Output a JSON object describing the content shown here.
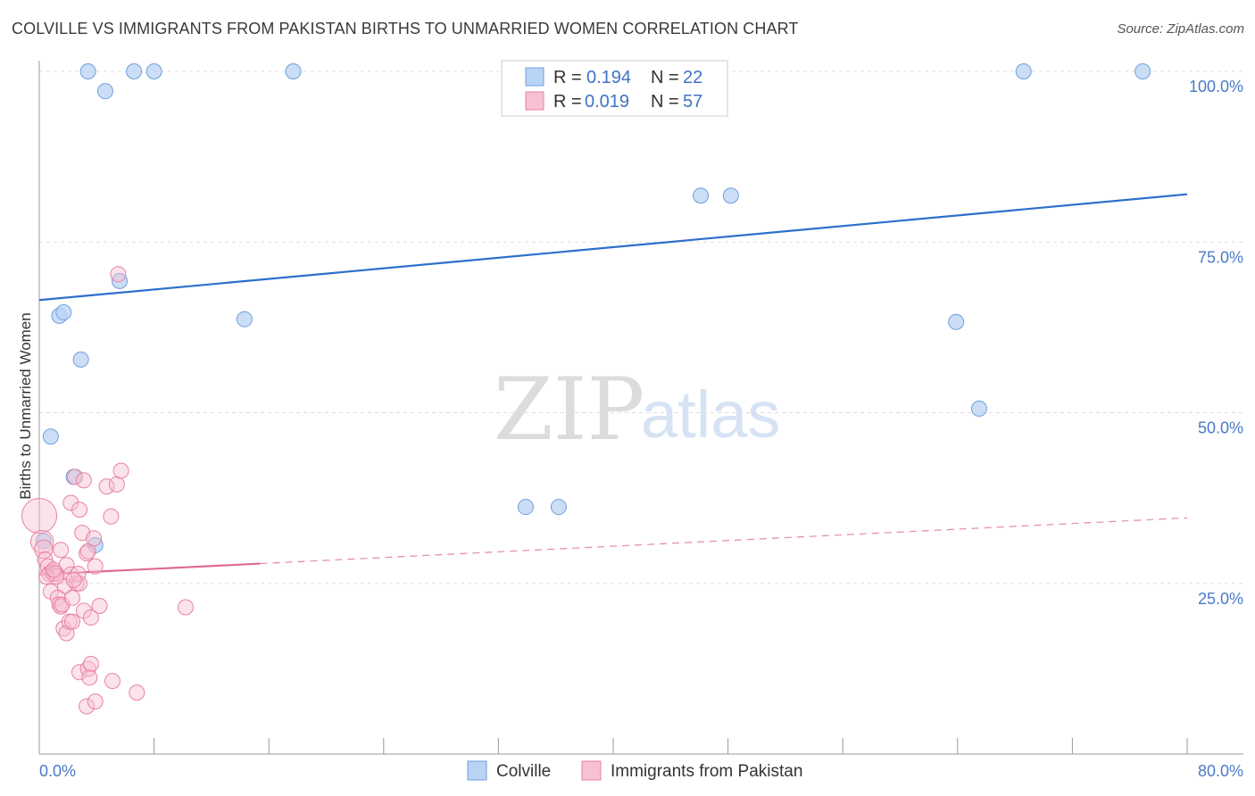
{
  "title": "COLVILLE VS IMMIGRANTS FROM PAKISTAN BIRTHS TO UNMARRIED WOMEN CORRELATION CHART",
  "source": "Source: ZipAtlas.com",
  "watermark": {
    "zip": "ZIP",
    "atlas": "atlas"
  },
  "colors": {
    "blue_fill": "#b9d3f3",
    "blue_stroke": "#6f9fde",
    "blue_line": "#2c6fcc",
    "pink_fill": "#f6c1d1",
    "pink_stroke": "#e882a3",
    "pink_line": "#e06a93",
    "grid": "#dddddd",
    "axis": "#999999",
    "tick_label": "#4a7ac7"
  },
  "legend": {
    "rows": [
      {
        "r_label": "R =",
        "r_value": "0.194",
        "n_label": "N =",
        "n_value": "22",
        "series": "Colville"
      },
      {
        "r_label": "R =",
        "r_value": "0.019",
        "n_label": "N =",
        "n_value": "57",
        "series": "Immigrants from Pakistan"
      }
    ]
  },
  "chart_data": {
    "type": "scatter",
    "title": "COLVILLE VS IMMIGRANTS FROM PAKISTAN BIRTHS TO UNMARRIED WOMEN CORRELATION CHART",
    "xlabel": "",
    "ylabel": "Births to Unmarried Women",
    "xlim": [
      0,
      80
    ],
    "ylim": [
      0,
      100
    ],
    "x_tick_labels": [
      "0.0%",
      "80.0%"
    ],
    "y_tick_labels": [
      "25.0%",
      "50.0%",
      "75.0%",
      "100.0%"
    ],
    "y_tick_values": [
      25,
      50,
      75,
      100
    ],
    "legend_position": "top-center",
    "series": [
      {
        "name": "Colville",
        "color": "blue",
        "r": 0.194,
        "n": 22,
        "trend": {
          "x0": 0,
          "y0": 66.5,
          "x1": 80,
          "y1": 82.0,
          "dashed_from": null
        },
        "points": [
          {
            "x": 3.4,
            "y": 100,
            "s": 1
          },
          {
            "x": 4.6,
            "y": 97.1,
            "s": 1
          },
          {
            "x": 6.6,
            "y": 100,
            "s": 1
          },
          {
            "x": 8.0,
            "y": 100,
            "s": 1
          },
          {
            "x": 17.7,
            "y": 100,
            "s": 1
          },
          {
            "x": 68.6,
            "y": 100,
            "s": 1
          },
          {
            "x": 76.9,
            "y": 100,
            "s": 1
          },
          {
            "x": 46.1,
            "y": 81.8,
            "s": 1
          },
          {
            "x": 48.2,
            "y": 81.8,
            "s": 1
          },
          {
            "x": 5.6,
            "y": 69.3,
            "s": 1
          },
          {
            "x": 1.4,
            "y": 64.2,
            "s": 1
          },
          {
            "x": 1.7,
            "y": 64.7,
            "s": 1
          },
          {
            "x": 14.3,
            "y": 63.7,
            "s": 1
          },
          {
            "x": 63.9,
            "y": 63.3,
            "s": 1
          },
          {
            "x": 2.9,
            "y": 57.8,
            "s": 1
          },
          {
            "x": 65.5,
            "y": 50.6,
            "s": 1
          },
          {
            "x": 0.8,
            "y": 46.5,
            "s": 1
          },
          {
            "x": 2.4,
            "y": 40.6,
            "s": 1
          },
          {
            "x": 33.9,
            "y": 36.2,
            "s": 1
          },
          {
            "x": 36.2,
            "y": 36.2,
            "s": 1
          },
          {
            "x": 0.3,
            "y": 31.2,
            "s": 1
          },
          {
            "x": 3.9,
            "y": 30.6,
            "s": 1
          }
        ]
      },
      {
        "name": "Immigrants from Pakistan",
        "color": "pink",
        "r": 0.019,
        "n": 57,
        "trend": {
          "x0": 0,
          "y0": 26.3,
          "x1": 80,
          "y1": 34.6,
          "dashed_from": 15.4
        },
        "points": [
          {
            "x": 0.0,
            "y": 34.9,
            "s": 2.3
          },
          {
            "x": 0.2,
            "y": 31.1,
            "s": 1.5
          },
          {
            "x": 0.3,
            "y": 30.0,
            "s": 1.2
          },
          {
            "x": 0.4,
            "y": 28.5,
            "s": 1
          },
          {
            "x": 0.6,
            "y": 27.5,
            "s": 1
          },
          {
            "x": 0.7,
            "y": 26.4,
            "s": 1
          },
          {
            "x": 0.9,
            "y": 26.6,
            "s": 1
          },
          {
            "x": 1.0,
            "y": 26.4,
            "s": 1
          },
          {
            "x": 1.1,
            "y": 26.6,
            "s": 1
          },
          {
            "x": 1.2,
            "y": 26.4,
            "s": 1
          },
          {
            "x": 0.8,
            "y": 23.8,
            "s": 1
          },
          {
            "x": 1.5,
            "y": 29.9,
            "s": 1
          },
          {
            "x": 1.8,
            "y": 24.6,
            "s": 1
          },
          {
            "x": 1.9,
            "y": 27.7,
            "s": 1
          },
          {
            "x": 1.3,
            "y": 22.9,
            "s": 1
          },
          {
            "x": 1.4,
            "y": 21.9,
            "s": 1
          },
          {
            "x": 1.5,
            "y": 21.6,
            "s": 1
          },
          {
            "x": 1.6,
            "y": 21.9,
            "s": 1
          },
          {
            "x": 1.7,
            "y": 18.4,
            "s": 1
          },
          {
            "x": 1.9,
            "y": 17.7,
            "s": 1
          },
          {
            "x": 2.1,
            "y": 19.4,
            "s": 1
          },
          {
            "x": 2.3,
            "y": 19.4,
            "s": 1
          },
          {
            "x": 2.2,
            "y": 26.3,
            "s": 1
          },
          {
            "x": 2.3,
            "y": 22.9,
            "s": 1
          },
          {
            "x": 2.6,
            "y": 25.0,
            "s": 1
          },
          {
            "x": 2.8,
            "y": 25.0,
            "s": 1
          },
          {
            "x": 2.7,
            "y": 26.4,
            "s": 1
          },
          {
            "x": 2.5,
            "y": 40.6,
            "s": 1
          },
          {
            "x": 2.2,
            "y": 36.8,
            "s": 1
          },
          {
            "x": 2.8,
            "y": 35.8,
            "s": 1
          },
          {
            "x": 3.1,
            "y": 40.1,
            "s": 1
          },
          {
            "x": 3.0,
            "y": 32.4,
            "s": 1
          },
          {
            "x": 3.3,
            "y": 29.4,
            "s": 1
          },
          {
            "x": 3.4,
            "y": 29.7,
            "s": 1
          },
          {
            "x": 3.8,
            "y": 31.6,
            "s": 1
          },
          {
            "x": 3.9,
            "y": 27.5,
            "s": 1
          },
          {
            "x": 3.1,
            "y": 21.0,
            "s": 1
          },
          {
            "x": 3.6,
            "y": 20.0,
            "s": 1
          },
          {
            "x": 4.2,
            "y": 21.7,
            "s": 1
          },
          {
            "x": 4.7,
            "y": 39.2,
            "s": 1
          },
          {
            "x": 5.4,
            "y": 39.5,
            "s": 1
          },
          {
            "x": 5.7,
            "y": 41.5,
            "s": 1
          },
          {
            "x": 5.0,
            "y": 34.8,
            "s": 1
          },
          {
            "x": 5.5,
            "y": 70.3,
            "s": 1
          },
          {
            "x": 10.2,
            "y": 21.5,
            "s": 1
          },
          {
            "x": 2.8,
            "y": 12.0,
            "s": 1
          },
          {
            "x": 3.4,
            "y": 12.5,
            "s": 1
          },
          {
            "x": 3.6,
            "y": 13.2,
            "s": 1
          },
          {
            "x": 3.5,
            "y": 11.2,
            "s": 1
          },
          {
            "x": 5.1,
            "y": 10.7,
            "s": 1
          },
          {
            "x": 6.8,
            "y": 9.0,
            "s": 1
          },
          {
            "x": 3.3,
            "y": 7.0,
            "s": 1
          },
          {
            "x": 3.9,
            "y": 7.7,
            "s": 1
          },
          {
            "x": 1.2,
            "y": 26.0,
            "s": 1
          },
          {
            "x": 0.5,
            "y": 26.0,
            "s": 1
          },
          {
            "x": 2.4,
            "y": 25.5,
            "s": 1
          },
          {
            "x": 1.0,
            "y": 27.0,
            "s": 1
          }
        ]
      }
    ]
  }
}
